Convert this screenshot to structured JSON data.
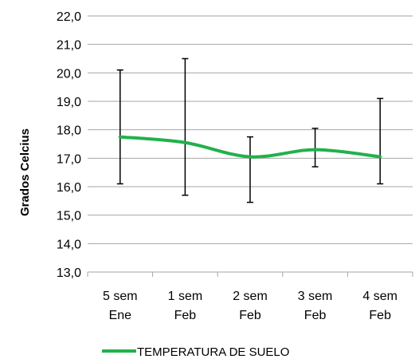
{
  "chart_data": {
    "type": "line",
    "title": "",
    "xlabel": "",
    "ylabel": "Grados Celcius",
    "ylim": [
      13.0,
      22.0
    ],
    "y_step": 1.0,
    "y_tick_format": "one decimal, comma separator",
    "grid": "horizontal",
    "legend_position": "bottom",
    "categories": [
      [
        "5 sem",
        "Ene"
      ],
      [
        "1 sem",
        "Feb"
      ],
      [
        "2 sem",
        "Feb"
      ],
      [
        "3 sem",
        "Feb"
      ],
      [
        "4 sem",
        "Feb"
      ]
    ],
    "series": [
      {
        "name": "TEMPERATURA DE SUELO",
        "color": "#22b14c",
        "smooth": true,
        "values": [
          17.75,
          17.55,
          17.05,
          17.3,
          17.05
        ],
        "error_low": [
          16.1,
          15.7,
          15.45,
          16.7,
          16.1
        ],
        "error_high": [
          20.1,
          20.5,
          17.75,
          18.05,
          19.1
        ]
      }
    ]
  }
}
